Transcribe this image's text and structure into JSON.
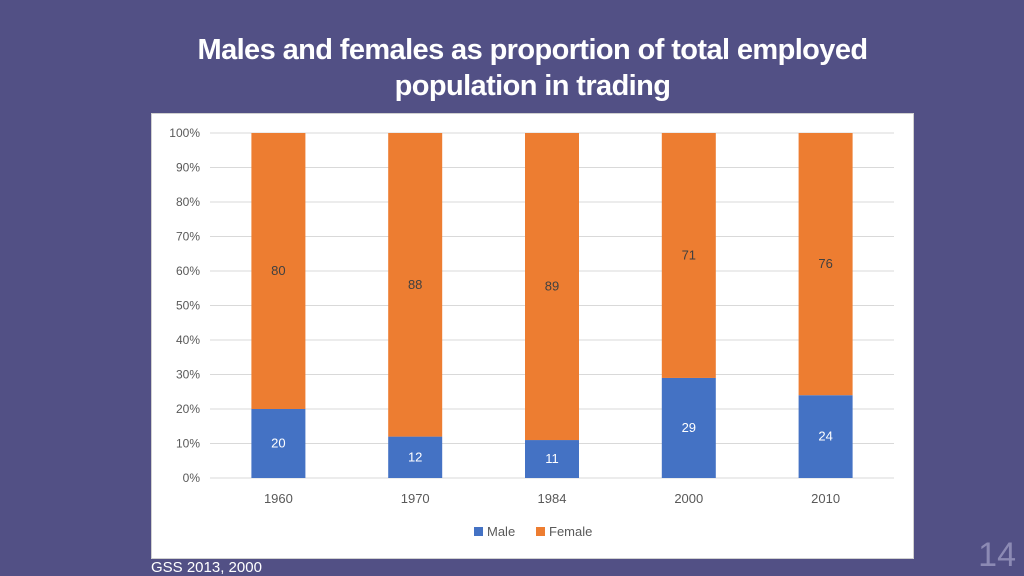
{
  "slide": {
    "title_line1": "Males and females as proportion of total employed",
    "title_line2": "population in trading",
    "source": "GSS 2013, 2000",
    "page_number": "14"
  },
  "colors": {
    "background": "#525085",
    "male": "#4472c4",
    "female": "#ed7d31",
    "grid": "#d9d9d9"
  },
  "chart_data": {
    "type": "bar",
    "stacked": true,
    "categories": [
      "1960",
      "1970",
      "1984",
      "2000",
      "2010"
    ],
    "series": [
      {
        "name": "Male",
        "values": [
          20,
          12,
          11,
          29,
          24
        ],
        "color": "#4472c4"
      },
      {
        "name": "Female",
        "values": [
          80,
          88,
          89,
          71,
          76
        ],
        "color": "#ed7d31"
      }
    ],
    "y_ticks": [
      "0%",
      "10%",
      "20%",
      "30%",
      "40%",
      "50%",
      "60%",
      "70%",
      "80%",
      "90%",
      "100%"
    ],
    "ylim": [
      0,
      100
    ],
    "grid": true,
    "legend_position": "bottom"
  }
}
